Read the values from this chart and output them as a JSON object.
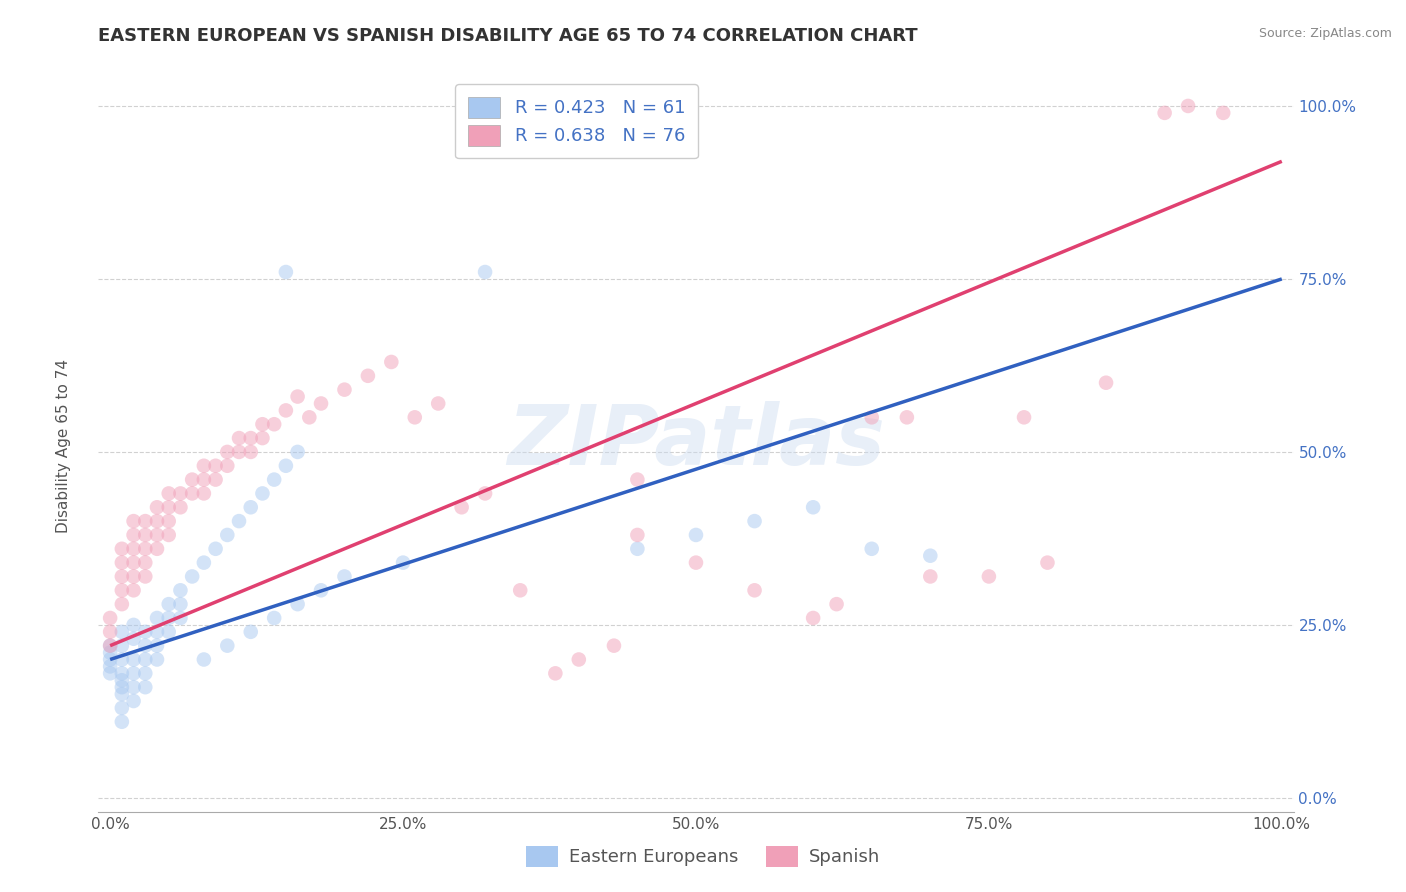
{
  "title": "EASTERN EUROPEAN VS SPANISH DISABILITY AGE 65 TO 74 CORRELATION CHART",
  "source": "Source: ZipAtlas.com",
  "ylabel": "Disability Age 65 to 74",
  "xlim": [
    -0.01,
    1.01
  ],
  "ylim": [
    -0.02,
    1.05
  ],
  "xticks": [
    0.0,
    0.25,
    0.5,
    0.75,
    1.0
  ],
  "yticks": [
    0.0,
    0.25,
    0.5,
    0.75,
    1.0
  ],
  "xticklabels": [
    "0.0%",
    "25.0%",
    "50.0%",
    "75.0%",
    "100.0%"
  ],
  "yticklabels": [
    "0.0%",
    "25.0%",
    "50.0%",
    "75.0%",
    "100.0%"
  ],
  "watermark": "ZIPatlas",
  "legend_R1": "R = 0.423",
  "legend_N1": "N = 61",
  "legend_R2": "R = 0.638",
  "legend_N2": "N = 76",
  "legend_label1": "Eastern Europeans",
  "legend_label2": "Spanish",
  "blue_color": "#a8c8f0",
  "pink_color": "#f0a0b8",
  "blue_line_color": "#3060c0",
  "pink_line_color": "#e04070",
  "blue_scatter": [
    [
      0.0,
      0.2
    ],
    [
      0.0,
      0.22
    ],
    [
      0.0,
      0.18
    ],
    [
      0.0,
      0.19
    ],
    [
      0.0,
      0.21
    ],
    [
      0.01,
      0.22
    ],
    [
      0.01,
      0.24
    ],
    [
      0.01,
      0.2
    ],
    [
      0.01,
      0.18
    ],
    [
      0.01,
      0.16
    ],
    [
      0.01,
      0.17
    ],
    [
      0.01,
      0.15
    ],
    [
      0.01,
      0.13
    ],
    [
      0.01,
      0.11
    ],
    [
      0.02,
      0.2
    ],
    [
      0.02,
      0.18
    ],
    [
      0.02,
      0.16
    ],
    [
      0.02,
      0.14
    ],
    [
      0.02,
      0.23
    ],
    [
      0.02,
      0.25
    ],
    [
      0.03,
      0.22
    ],
    [
      0.03,
      0.2
    ],
    [
      0.03,
      0.18
    ],
    [
      0.03,
      0.16
    ],
    [
      0.03,
      0.24
    ],
    [
      0.04,
      0.26
    ],
    [
      0.04,
      0.24
    ],
    [
      0.04,
      0.22
    ],
    [
      0.04,
      0.2
    ],
    [
      0.05,
      0.28
    ],
    [
      0.05,
      0.26
    ],
    [
      0.05,
      0.24
    ],
    [
      0.06,
      0.3
    ],
    [
      0.06,
      0.28
    ],
    [
      0.06,
      0.26
    ],
    [
      0.07,
      0.32
    ],
    [
      0.08,
      0.34
    ],
    [
      0.09,
      0.36
    ],
    [
      0.1,
      0.38
    ],
    [
      0.11,
      0.4
    ],
    [
      0.12,
      0.42
    ],
    [
      0.13,
      0.44
    ],
    [
      0.14,
      0.46
    ],
    [
      0.15,
      0.48
    ],
    [
      0.16,
      0.5
    ],
    [
      0.08,
      0.2
    ],
    [
      0.1,
      0.22
    ],
    [
      0.12,
      0.24
    ],
    [
      0.14,
      0.26
    ],
    [
      0.16,
      0.28
    ],
    [
      0.18,
      0.3
    ],
    [
      0.2,
      0.32
    ],
    [
      0.25,
      0.34
    ],
    [
      0.45,
      0.36
    ],
    [
      0.5,
      0.38
    ],
    [
      0.55,
      0.4
    ],
    [
      0.6,
      0.42
    ],
    [
      0.65,
      0.36
    ],
    [
      0.7,
      0.35
    ],
    [
      0.15,
      0.76
    ],
    [
      0.32,
      0.76
    ]
  ],
  "pink_scatter": [
    [
      0.0,
      0.24
    ],
    [
      0.0,
      0.26
    ],
    [
      0.0,
      0.22
    ],
    [
      0.01,
      0.28
    ],
    [
      0.01,
      0.3
    ],
    [
      0.01,
      0.32
    ],
    [
      0.01,
      0.34
    ],
    [
      0.01,
      0.36
    ],
    [
      0.02,
      0.3
    ],
    [
      0.02,
      0.32
    ],
    [
      0.02,
      0.34
    ],
    [
      0.02,
      0.36
    ],
    [
      0.02,
      0.38
    ],
    [
      0.02,
      0.4
    ],
    [
      0.03,
      0.32
    ],
    [
      0.03,
      0.34
    ],
    [
      0.03,
      0.36
    ],
    [
      0.03,
      0.38
    ],
    [
      0.03,
      0.4
    ],
    [
      0.04,
      0.36
    ],
    [
      0.04,
      0.38
    ],
    [
      0.04,
      0.4
    ],
    [
      0.04,
      0.42
    ],
    [
      0.05,
      0.38
    ],
    [
      0.05,
      0.4
    ],
    [
      0.05,
      0.42
    ],
    [
      0.05,
      0.44
    ],
    [
      0.06,
      0.42
    ],
    [
      0.06,
      0.44
    ],
    [
      0.07,
      0.44
    ],
    [
      0.07,
      0.46
    ],
    [
      0.08,
      0.44
    ],
    [
      0.08,
      0.46
    ],
    [
      0.08,
      0.48
    ],
    [
      0.09,
      0.46
    ],
    [
      0.09,
      0.48
    ],
    [
      0.1,
      0.48
    ],
    [
      0.1,
      0.5
    ],
    [
      0.11,
      0.5
    ],
    [
      0.11,
      0.52
    ],
    [
      0.12,
      0.5
    ],
    [
      0.12,
      0.52
    ],
    [
      0.13,
      0.52
    ],
    [
      0.13,
      0.54
    ],
    [
      0.14,
      0.54
    ],
    [
      0.15,
      0.56
    ],
    [
      0.16,
      0.58
    ],
    [
      0.17,
      0.55
    ],
    [
      0.18,
      0.57
    ],
    [
      0.2,
      0.59
    ],
    [
      0.22,
      0.61
    ],
    [
      0.24,
      0.63
    ],
    [
      0.26,
      0.55
    ],
    [
      0.28,
      0.57
    ],
    [
      0.3,
      0.42
    ],
    [
      0.32,
      0.44
    ],
    [
      0.35,
      0.3
    ],
    [
      0.38,
      0.18
    ],
    [
      0.4,
      0.2
    ],
    [
      0.43,
      0.22
    ],
    [
      0.45,
      0.38
    ],
    [
      0.5,
      0.34
    ],
    [
      0.55,
      0.3
    ],
    [
      0.6,
      0.26
    ],
    [
      0.62,
      0.28
    ],
    [
      0.65,
      0.55
    ],
    [
      0.7,
      0.32
    ],
    [
      0.75,
      0.32
    ],
    [
      0.8,
      0.34
    ],
    [
      0.85,
      0.6
    ],
    [
      0.9,
      0.99
    ],
    [
      0.92,
      1.0
    ],
    [
      0.95,
      0.99
    ],
    [
      0.78,
      0.55
    ],
    [
      0.68,
      0.55
    ],
    [
      0.45,
      0.46
    ]
  ],
  "blue_line_intercept": 0.2,
  "blue_line_slope": 0.55,
  "pink_line_intercept": 0.22,
  "pink_line_slope": 0.7,
  "background_color": "#ffffff",
  "grid_color": "#cccccc",
  "title_fontsize": 13,
  "axis_label_fontsize": 11,
  "tick_fontsize": 11,
  "legend_fontsize": 13,
  "scatter_size": 110,
  "scatter_alpha": 0.5
}
